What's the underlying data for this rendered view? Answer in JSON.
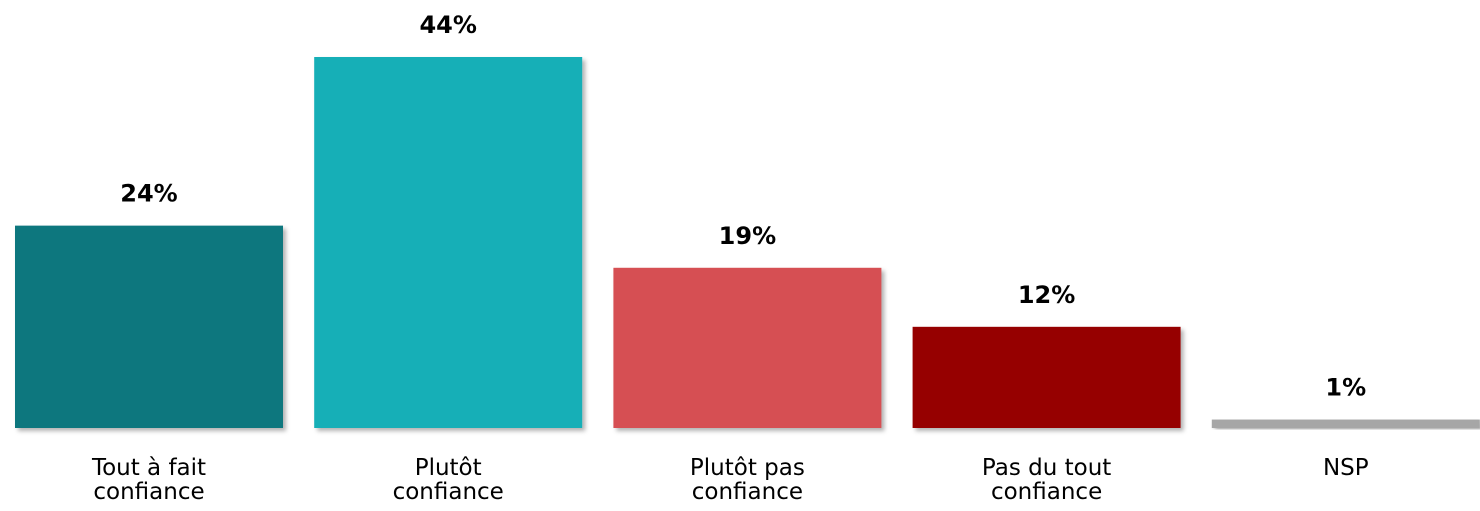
{
  "chart_data": {
    "type": "bar",
    "categories": [
      "Tout à fait confiance",
      "Plutôt confiance",
      "Plutôt pas confiance",
      "Pas du tout confiance",
      "NSP"
    ],
    "values": [
      24,
      44,
      19,
      12,
      1
    ],
    "value_labels": [
      "24%",
      "44%",
      "19%",
      "12%",
      "1%"
    ],
    "colors": [
      "#11777e",
      "#14afb7",
      "#d65052",
      "#960000",
      "#a6a6a6"
    ]
  }
}
